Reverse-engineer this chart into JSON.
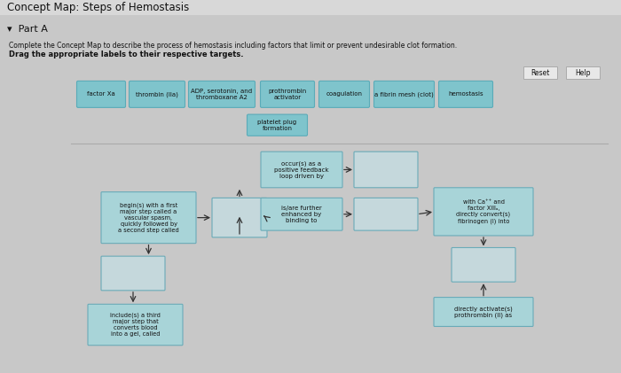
{
  "title": "Concept Map: Steps of Hemostasis",
  "part_label": "▾  Part A",
  "instruction1": "Complete the Concept Map to describe the process of hemostasis including factors that limit or prevent undesirable clot formation.",
  "instruction2": "Drag the appropriate labels to their respective targets.",
  "page_bg": "#b8b8b8",
  "content_bg": "#d0d0d0",
  "inner_top_bg": "#c8c8c8",
  "inner_bot_bg": "#e0e0e0",
  "box_teal": "#7fc4cc",
  "box_teal_light": "#a8d4d8",
  "box_empty": "#b8cdd4",
  "box_empty_bg": "#c5d8dc",
  "button_bg": "#e8e8e8",
  "arrow_color": "#333333",
  "text_dark": "#111111",
  "label_boxes": [
    "factor Xa",
    "thrombin (IIa)",
    "ADP, serotonin, and\nthromboxane A2",
    "prothrombin\nactivator",
    "coagulation",
    "a fibrin mesh (clot)",
    "hemostasis"
  ],
  "extra_label": "platelet plug\nformation"
}
